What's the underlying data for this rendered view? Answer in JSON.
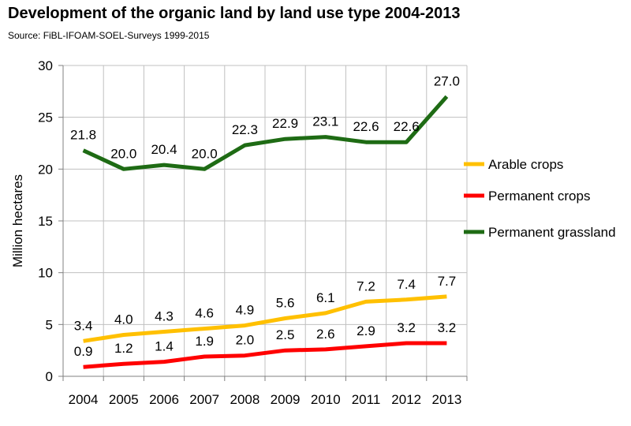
{
  "title": "Development of the organic land by land use type 2004-2013",
  "subtitle": "Source: FiBL-IFOAM-SOEL-Surveys 1999-2015",
  "chart_data": {
    "type": "line",
    "title": "Development of the organic land by land use type 2004-2013",
    "subtitle": "Source: FiBL-IFOAM-SOEL-Surveys 1999-2015",
    "xlabel": "",
    "ylabel": "Million hectares",
    "x": [
      "2004",
      "2005",
      "2006",
      "2007",
      "2008",
      "2009",
      "2010",
      "2011",
      "2012",
      "2013"
    ],
    "ylim": [
      0,
      30
    ],
    "yticks": [
      0,
      5,
      10,
      15,
      20,
      25,
      30
    ],
    "grid": true,
    "legend_position": "right",
    "series": [
      {
        "name": "Arable crops",
        "color": "#FFC000",
        "values": [
          3.4,
          4.0,
          4.3,
          4.6,
          4.9,
          5.6,
          6.1,
          7.2,
          7.4,
          7.7
        ],
        "labels": [
          "3.4",
          "4.0",
          "4.3",
          "4.6",
          "4.9",
          "5.6",
          "6.1",
          "7.2",
          "7.4",
          "7.7"
        ]
      },
      {
        "name": "Permanent crops",
        "color": "#FF0000",
        "values": [
          0.9,
          1.2,
          1.4,
          1.9,
          2.0,
          2.5,
          2.6,
          2.9,
          3.2,
          3.2
        ],
        "labels": [
          "0.9",
          "1.2",
          "1.4",
          "1.9",
          "2.0",
          "2.5",
          "2.6",
          "2.9",
          "3.2",
          "3.2"
        ]
      },
      {
        "name": "Permanent grassland",
        "color": "#1E6B14",
        "values": [
          21.8,
          20.0,
          20.4,
          20.0,
          22.3,
          22.9,
          23.1,
          22.6,
          22.6,
          27.0
        ],
        "labels": [
          "21.8",
          "20.0",
          "20.4",
          "20.0",
          "22.3",
          "22.9",
          "23.1",
          "22.6",
          "22.6",
          "27.0"
        ]
      }
    ]
  }
}
